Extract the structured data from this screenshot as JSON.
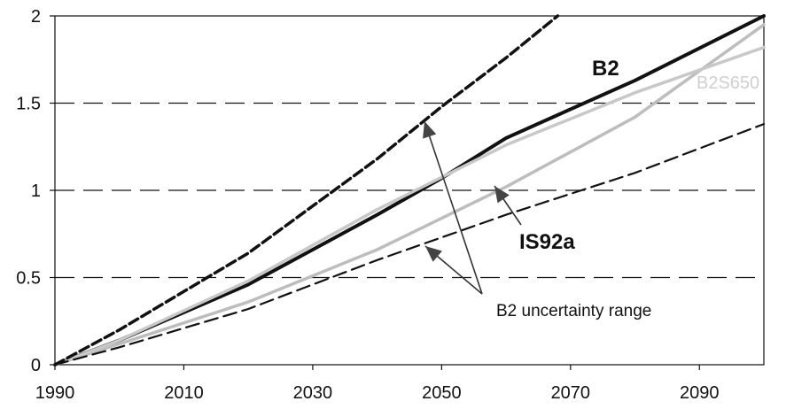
{
  "chart_data": {
    "type": "line",
    "title": "",
    "xlabel": "",
    "ylabel": "",
    "xlim": [
      1990,
      2100
    ],
    "ylim": [
      0,
      2
    ],
    "x_ticks": [
      1990,
      2010,
      2030,
      2050,
      2070,
      2090
    ],
    "x_tick_labels": [
      "1990",
      "2010",
      "2030",
      "2050",
      "2070",
      "2090"
    ],
    "y_ticks": [
      0,
      0.5,
      1,
      1.5,
      2
    ],
    "y_tick_labels": [
      "0",
      "0.5",
      "1",
      "1.5",
      "2"
    ],
    "grid": "horizontal dashed at 0.5, 1, 1.5",
    "series": [
      {
        "name": "B2",
        "color": "#111111",
        "style": "solid",
        "x": [
          1990,
          2000,
          2020,
          2040,
          2050,
          2060,
          2080,
          2100
        ],
        "y": [
          0,
          0.14,
          0.46,
          0.86,
          1.07,
          1.3,
          1.63,
          2.0
        ]
      },
      {
        "name": "IS92a",
        "color": "#bdbdbd",
        "style": "solid",
        "x": [
          1990,
          2000,
          2020,
          2040,
          2060,
          2080,
          2100
        ],
        "y": [
          0,
          0.12,
          0.36,
          0.66,
          1.02,
          1.42,
          1.95
        ]
      },
      {
        "name": "B2S650",
        "color": "#c8c8c8",
        "style": "solid",
        "x": [
          1990,
          2000,
          2020,
          2040,
          2060,
          2080,
          2100
        ],
        "y": [
          0,
          0.14,
          0.48,
          0.89,
          1.26,
          1.56,
          1.82
        ]
      },
      {
        "name": "",
        "color": "#111111",
        "style": "dashed-bold",
        "x": [
          1990,
          2000,
          2020,
          2040,
          2050,
          2060,
          2068
        ],
        "y": [
          0,
          0.2,
          0.64,
          1.18,
          1.48,
          1.76,
          2.0
        ]
      },
      {
        "name": "",
        "color": "#111111",
        "style": "dashed",
        "x": [
          1990,
          2000,
          2020,
          2040,
          2060,
          2080,
          2100
        ],
        "y": [
          0,
          0.1,
          0.32,
          0.6,
          0.86,
          1.1,
          1.38
        ]
      }
    ],
    "annotations": [
      {
        "text": "B2",
        "weight": "bold",
        "color": "#111111"
      },
      {
        "text": "B2S650",
        "weight": "normal",
        "color": "#cfcfcf"
      },
      {
        "text": "IS92a",
        "weight": "bold",
        "color": "#111111"
      },
      {
        "text": "B2 uncertainty range",
        "weight": "normal",
        "color": "#111111"
      }
    ]
  }
}
